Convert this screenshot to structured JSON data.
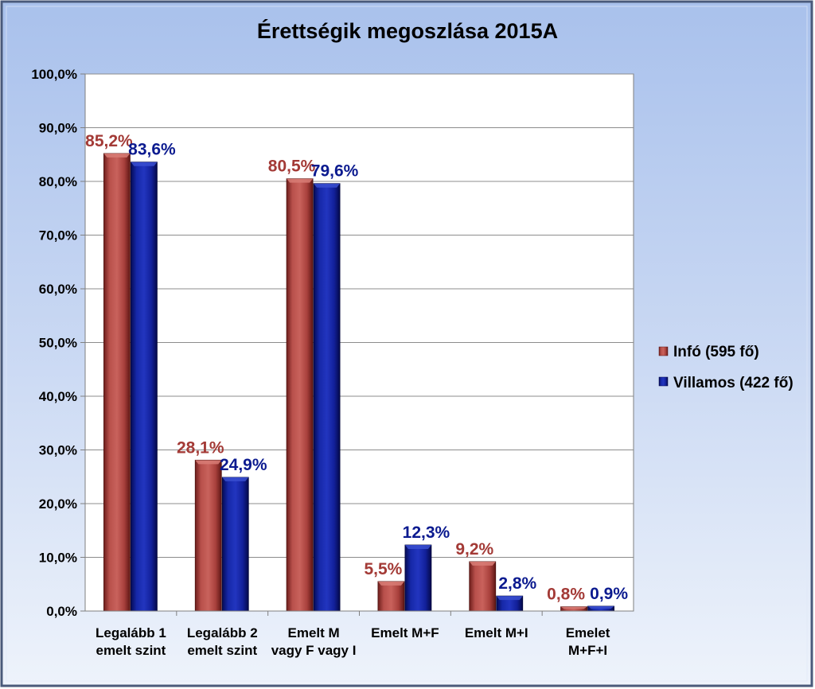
{
  "chart_data": {
    "type": "bar",
    "title": "Érettségik megoszlása 2015A",
    "categories": [
      [
        "Legalább 1",
        "emelt szint"
      ],
      [
        "Legalább 2",
        "emelt szint"
      ],
      [
        "Emelt M",
        "vagy F vagy I"
      ],
      [
        "Emelt M+F"
      ],
      [
        "Emelt M+I"
      ],
      [
        "Emelet",
        "M+F+I"
      ]
    ],
    "series": [
      {
        "name": "Infó (595 fő)",
        "color": "#a33a36",
        "values": [
          85.2,
          28.1,
          80.5,
          5.5,
          9.2,
          0.8
        ],
        "labels": [
          "85,2%",
          "28,1%",
          "80,5%",
          "5,5%",
          "9,2%",
          "0,8%"
        ]
      },
      {
        "name": "Villamos (422 fő)",
        "color": "#0b1a8f",
        "values": [
          83.6,
          24.9,
          79.6,
          12.3,
          2.8,
          0.9
        ],
        "labels": [
          "83,6%",
          "24,9%",
          "79,6%",
          "12,3%",
          "2,8%",
          "0,9%"
        ]
      }
    ],
    "ylim": [
      0,
      100
    ],
    "yticks": [
      "0,0%",
      "10,0%",
      "20,0%",
      "30,0%",
      "40,0%",
      "50,0%",
      "60,0%",
      "70,0%",
      "80,0%",
      "90,0%",
      "100,0%"
    ],
    "xlabel": "",
    "ylabel": "",
    "grid": true,
    "legend_position": "right"
  }
}
